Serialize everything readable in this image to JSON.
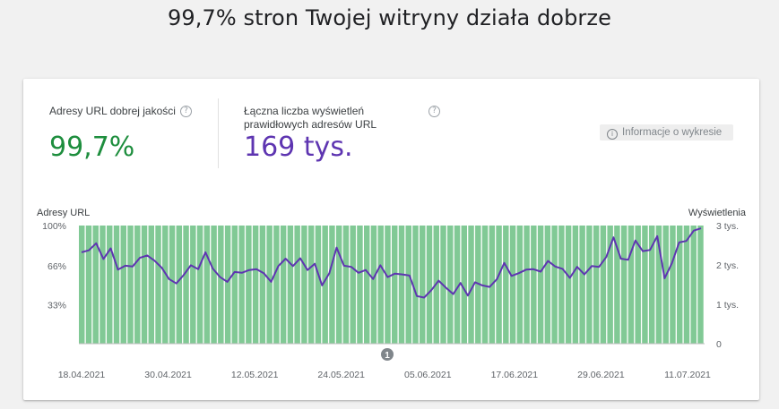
{
  "page": {
    "title": "99,7% stron Twojej witryny działa dobrze"
  },
  "metrics": {
    "good_urls": {
      "label": "Adresy URL dobrej jakości",
      "value": "99,7%",
      "color": "#1e8e3e"
    },
    "impressions": {
      "label_line1": "Łączna liczba wyświetleń",
      "label_line2": "prawidłowych adresów URL",
      "value": "169 tys.",
      "color": "#5e35b1"
    }
  },
  "info_button": {
    "label": "Informacje o wykresie"
  },
  "icons": {
    "help": "?",
    "info": "i"
  },
  "chart_data": {
    "type": "bar",
    "left_axis_title": "Adresy URL",
    "right_axis_title": "Wyświetlenia",
    "left_ticks": [
      "100%",
      "66%",
      "33%"
    ],
    "left_tick_values": [
      100,
      66,
      33
    ],
    "right_ticks": [
      "3 tys.",
      "2 tys.",
      "1 tys.",
      "0"
    ],
    "right_tick_values": [
      3000,
      2000,
      1000,
      0
    ],
    "x_labels": [
      "18.04.2021",
      "30.04.2021",
      "12.05.2021",
      "24.05.2021",
      "05.06.2021",
      "17.06.2021",
      "29.06.2021",
      "11.07.2021"
    ],
    "annotation": "1",
    "bar_color": "#81c995",
    "line_color": "#5e35b1",
    "bar_series": {
      "name": "Adresy URL dobrej jakości",
      "value_percent": 100,
      "count": 90
    },
    "line_series": {
      "name": "Wyświetlenia",
      "values": [
        2320,
        2370,
        2550,
        2150,
        2420,
        1880,
        1980,
        1960,
        2180,
        2240,
        2110,
        1930,
        1640,
        1530,
        1740,
        1990,
        1890,
        2320,
        1910,
        1690,
        1570,
        1820,
        1800,
        1870,
        1890,
        1790,
        1570,
        1970,
        2160,
        1970,
        2170,
        1870,
        2030,
        1480,
        1790,
        2440,
        1980,
        1950,
        1800,
        1870,
        1640,
        1990,
        1690,
        1780,
        1760,
        1730,
        1210,
        1170,
        1360,
        1600,
        1420,
        1260,
        1540,
        1220,
        1560,
        1480,
        1440,
        1640,
        2050,
        1720,
        1790,
        1880,
        1890,
        1830,
        2100,
        1960,
        1900,
        1670,
        1950,
        1760,
        1970,
        1950,
        2200,
        2700,
        2160,
        2130,
        2620,
        2350,
        2380,
        2730,
        1660,
        2040,
        2570,
        2610,
        2870,
        2930
      ]
    }
  }
}
